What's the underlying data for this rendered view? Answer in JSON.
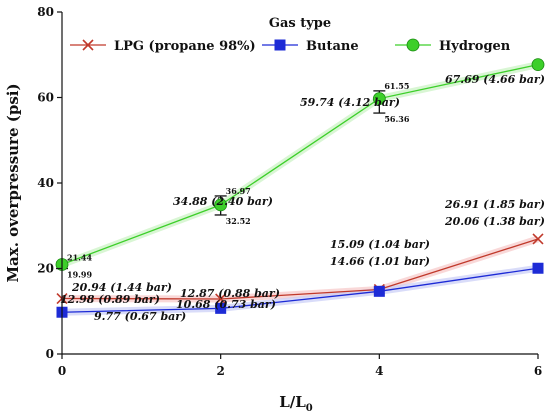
{
  "chart_data": {
    "type": "line",
    "title": "",
    "xlabel": "L/L",
    "xlabel_sub": "0",
    "ylabel": "Max. overpressure (psi)",
    "xlim": [
      0,
      6
    ],
    "ylim": [
      0,
      80
    ],
    "xticks": [
      0,
      2,
      4,
      6
    ],
    "yticks": [
      0,
      20,
      40,
      60,
      80
    ],
    "xtick_labels": [
      "0",
      "2",
      "4",
      "6"
    ],
    "ytick_labels": [
      "0",
      "20",
      "40",
      "60",
      "80"
    ],
    "grid": false,
    "legend_title": "Gas type",
    "legend_position": "top",
    "series": [
      {
        "name": "LPG (propane 98%)",
        "color": "#c0392b",
        "marker": "x",
        "x": [
          0,
          2,
          4,
          6
        ],
        "y": [
          12.98,
          12.87,
          15.09,
          26.91
        ]
      },
      {
        "name": "Butane",
        "color": "#1d2bd6",
        "marker": "square",
        "x": [
          0,
          2,
          4,
          6
        ],
        "y": [
          9.77,
          10.68,
          14.66,
          20.06
        ]
      },
      {
        "name": "Hydrogen",
        "color": "#3dcf2a",
        "marker": "circle",
        "x": [
          0,
          2,
          4,
          6
        ],
        "y": [
          20.94,
          34.88,
          59.74,
          67.69
        ]
      }
    ],
    "error_bars": [
      {
        "x": 0,
        "low": 19.99,
        "high": 21.44,
        "low_label": "19.99",
        "high_label": "21.44"
      },
      {
        "x": 2,
        "low": 32.52,
        "high": 36.97,
        "low_label": "32.52",
        "high_label": "36.97"
      },
      {
        "x": 4,
        "low": 56.36,
        "high": 61.55,
        "low_label": "56.36",
        "high_label": "61.55"
      }
    ],
    "annotations": [
      {
        "text": "20.94 (1.44 bar)"
      },
      {
        "text": "12.98 (0.89 bar)"
      },
      {
        "text": "9.77 (0.67 bar)"
      },
      {
        "text": "34.88 (2.40 bar)"
      },
      {
        "text": "12.87 (0.88 bar)"
      },
      {
        "text": "10.68 (0.73 bar)"
      },
      {
        "text": "59.74 (4.12 bar)"
      },
      {
        "text": "15.09 (1.04 bar)"
      },
      {
        "text": "14.66 (1.01 bar)"
      },
      {
        "text": "67.69 (4.66 bar)"
      },
      {
        "text": "26.91 (1.85 bar)"
      },
      {
        "text": "20.06 (1.38 bar)"
      }
    ]
  }
}
